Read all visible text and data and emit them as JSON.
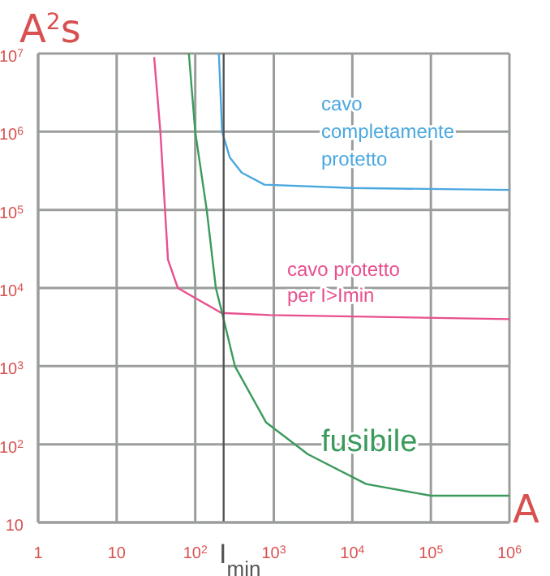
{
  "chart_data": {
    "type": "line",
    "xlabel": "A",
    "ylabel": "A$^{2}$s",
    "log": "xy",
    "grid": true,
    "legend": false,
    "marker": "none",
    "line_style": "solid",
    "xlim": [
      1,
      1000000
    ],
    "ylim": [
      10,
      10000000
    ],
    "xticks": [
      {
        "value": 1,
        "label": "1"
      },
      {
        "value": 10,
        "label": "10"
      },
      {
        "value": 100,
        "label": "10$^{2}$"
      },
      {
        "value": 1000,
        "label": "10$^{3}$"
      },
      {
        "value": 10000,
        "label": "10$^{4}$"
      },
      {
        "value": 100000,
        "label": "10$^{5}$"
      },
      {
        "value": 1000000,
        "label": "10$^{6}$"
      }
    ],
    "yticks": [
      {
        "value": 10,
        "label": "10"
      },
      {
        "value": 100,
        "label": "10$^{2}$"
      },
      {
        "value": 1000,
        "label": "10$^{3}$"
      },
      {
        "value": 10000,
        "label": "10$^{4}$"
      },
      {
        "value": 100000,
        "label": "10$^{5}$"
      },
      {
        "value": 1000000,
        "label": "10$^{6}$"
      },
      {
        "value": 10000000,
        "label": "10$^{7}$"
      }
    ],
    "series": [
      {
        "name": "cavo\ncompletamente\nprotetto",
        "color": "#4aa8e0",
        "x": [
          200,
          220,
          275,
          390,
          760,
          10000,
          1000000
        ],
        "values": [
          10000000,
          1000000,
          470000,
          300000,
          210000,
          190000,
          180000
        ]
      },
      {
        "name": "cavo protetto\nper I>Imin",
        "color": "#e8508f",
        "x": [
          30,
          36,
          45,
          60,
          215,
          900,
          1000000
        ],
        "values": [
          9000000,
          1000000,
          23000,
          10000,
          4800,
          4500,
          4000
        ]
      },
      {
        "name": "fusibile",
        "color": "#3a9a5c",
        "x": [
          83,
          100,
          140,
          183,
          220,
          320,
          800,
          2700,
          15000,
          100000,
          1000000
        ],
        "values": [
          10000000,
          1000000,
          100000,
          10000,
          4800,
          1000,
          190,
          75,
          31,
          22,
          22
        ]
      }
    ],
    "ref_lines": [
      {
        "axis": "x",
        "value": 230,
        "label": "I$_{min}$",
        "color": "#555555"
      }
    ]
  }
}
